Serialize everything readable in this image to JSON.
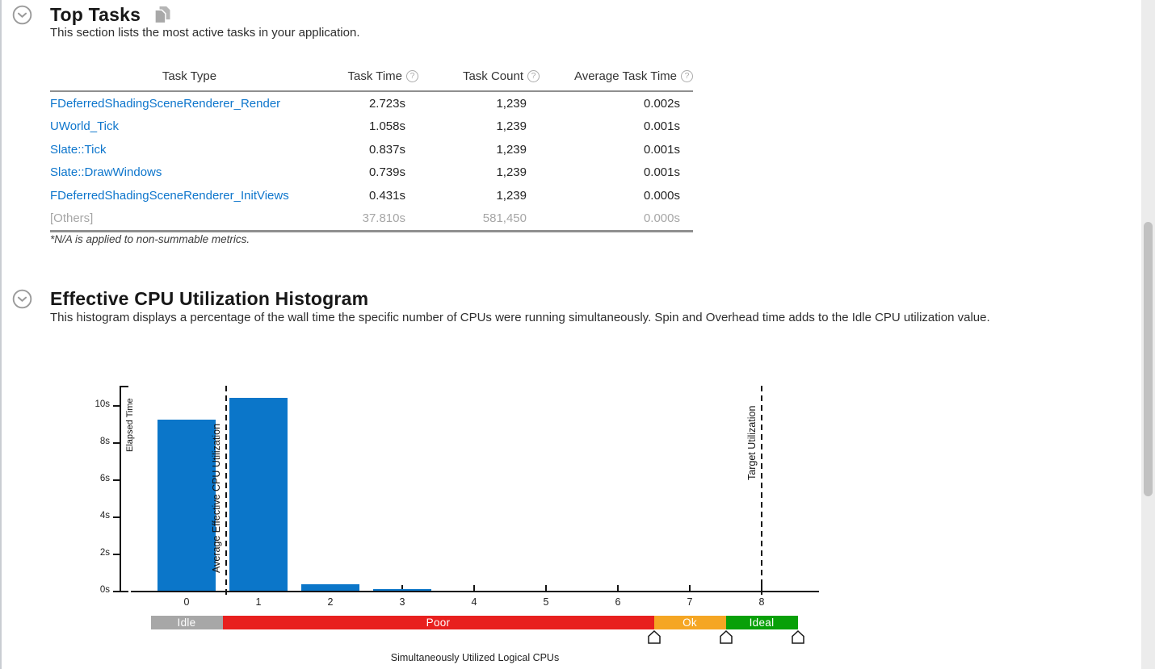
{
  "icons": {
    "help_glyph": "?"
  },
  "top_tasks": {
    "title": "Top Tasks",
    "description": "This section lists the most active tasks in your application.",
    "footnote": "*N/A is applied to non-summable metrics.",
    "table": {
      "headers": {
        "task_type": "Task Type",
        "task_time": "Task Time",
        "task_count": "Task Count",
        "avg_task_time": "Average Task Time"
      }
    },
    "rows": [
      {
        "task_type": "FDeferredShadingSceneRenderer_Render",
        "task_time": "2.723s",
        "task_count": "1,239",
        "avg_task_time": "0.002s"
      },
      {
        "task_type": "UWorld_Tick",
        "task_time": "1.058s",
        "task_count": "1,239",
        "avg_task_time": "0.001s"
      },
      {
        "task_type": "Slate::Tick",
        "task_time": "0.837s",
        "task_count": "1,239",
        "avg_task_time": "0.001s"
      },
      {
        "task_type": "Slate::DrawWindows",
        "task_time": "0.739s",
        "task_count": "1,239",
        "avg_task_time": "0.001s"
      },
      {
        "task_type": "FDeferredShadingSceneRenderer_InitViews",
        "task_time": "0.431s",
        "task_count": "1,239",
        "avg_task_time": "0.000s"
      },
      {
        "task_type": "[Others]",
        "task_time": "37.810s",
        "task_count": "581,450",
        "avg_task_time": "0.000s"
      }
    ]
  },
  "histogram_section": {
    "title": "Effective CPU Utilization Histogram",
    "description": "This histogram displays a percentage of the wall time the specific number of CPUs were running simultaneously. Spin and Overhead time adds to the Idle CPU utilization value."
  },
  "chart_data": {
    "type": "bar",
    "title": "Effective CPU Utilization Histogram",
    "xlabel": "Simultaneously Utilized Logical CPUs",
    "ylabel": "Elapsed Time",
    "categories": [
      0,
      1,
      2,
      3,
      4,
      5,
      6,
      7,
      8
    ],
    "values": [
      9.2,
      10.4,
      0.35,
      0.1,
      0,
      0,
      0,
      0,
      0
    ],
    "ytick_labels": [
      "0s",
      "2s",
      "4s",
      "6s",
      "8s",
      "10s"
    ],
    "ytick_values": [
      0,
      2,
      4,
      6,
      8,
      10
    ],
    "ylim": [
      0,
      11
    ],
    "grid": false,
    "bar_color": "#0b76c9",
    "annotations": [
      {
        "label": "Average Effective CPU Utilization",
        "x": 0.55,
        "style": "dashed-vertical"
      },
      {
        "label": "Target Utilization",
        "x": 8,
        "style": "dashed-vertical"
      }
    ],
    "utilization_bands": [
      {
        "label": "Idle",
        "from": -0.5,
        "to": 0.5,
        "color": "#a7a7a7"
      },
      {
        "label": "Poor",
        "from": 0.5,
        "to": 6.5,
        "color": "#e8201e"
      },
      {
        "label": "Ok",
        "from": 6.5,
        "to": 7.5,
        "color": "#f5a623"
      },
      {
        "label": "Ideal",
        "from": 7.5,
        "to": 8.5,
        "color": "#08a008"
      }
    ],
    "slider_positions": [
      6.5,
      7.5,
      8.5
    ]
  }
}
